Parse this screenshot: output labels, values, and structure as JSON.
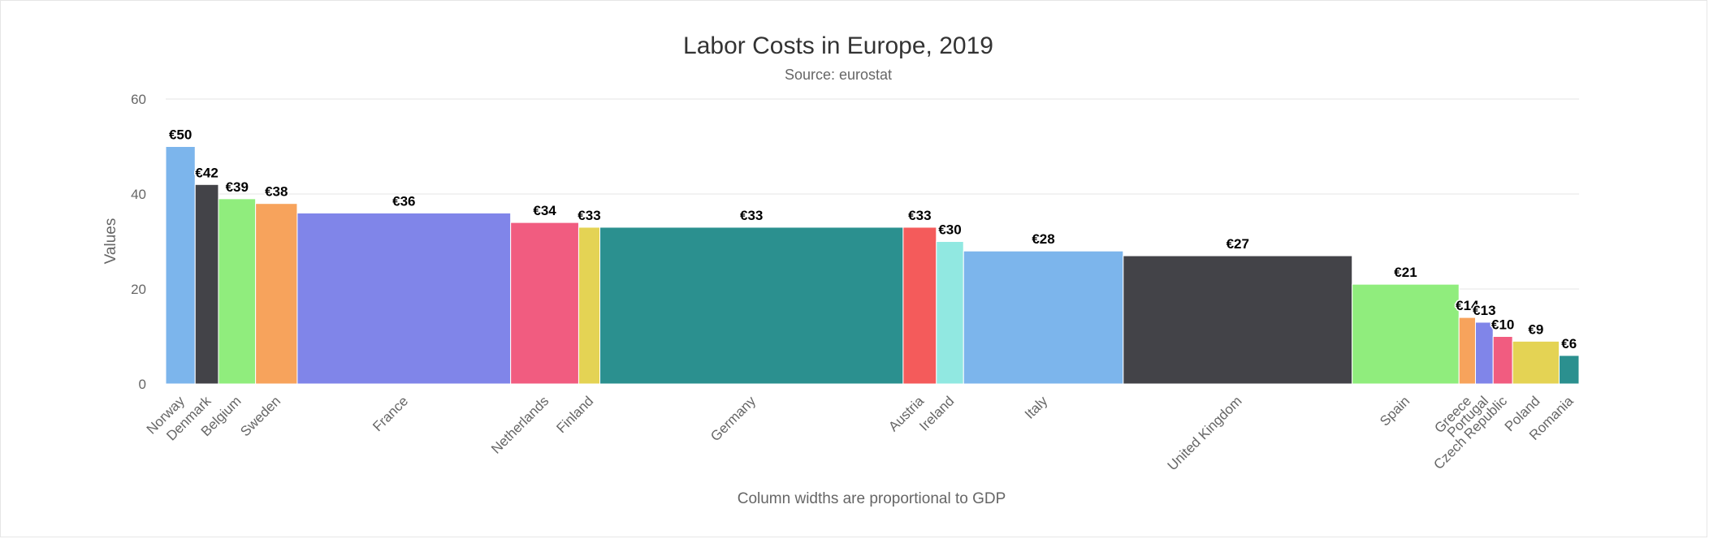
{
  "chart_data": {
    "type": "bar",
    "title": "Labor Costs in Europe, 2019",
    "subtitle": "Source: eurostat",
    "xlabel": "Column widths are proportional to GDP",
    "ylabel": "Values",
    "ylim": [
      0,
      60
    ],
    "yticks": [
      0,
      20,
      40,
      60
    ],
    "grid": true,
    "label_prefix": "€",
    "categories": [
      "Norway",
      "Denmark",
      "Belgium",
      "Sweden",
      "France",
      "Netherlands",
      "Finland",
      "Germany",
      "Austria",
      "Ireland",
      "Italy",
      "United Kingdom",
      "Spain",
      "Greece",
      "Portugal",
      "Czech Republic",
      "Poland",
      "Romania"
    ],
    "values": [
      50,
      42,
      39,
      38,
      36,
      34,
      33,
      33,
      33,
      30,
      28,
      27,
      21,
      14,
      13,
      10,
      9,
      6
    ],
    "data_labels": [
      "€50",
      "€42",
      "€39",
      "€38",
      "€36",
      "€34",
      "€33",
      "€33",
      "€33",
      "€30",
      "€28",
      "€27",
      "€21",
      "€14",
      "€13",
      "€10",
      "€9",
      "€6"
    ],
    "gdp_weights": [
      335,
      265,
      422,
      474,
      2427,
      774,
      241,
      3449,
      378,
      309,
      1816,
      2604,
      1215,
      187,
      201,
      221,
      530,
      226
    ],
    "colors": [
      "#7cb5ec",
      "#434348",
      "#90ed7d",
      "#f7a35c",
      "#8085e9",
      "#f15c80",
      "#e4d354",
      "#2b908f",
      "#f45b5b",
      "#91e8e1",
      "#7cb5ec",
      "#434348",
      "#90ed7d",
      "#f7a35c",
      "#8085e9",
      "#f15c80",
      "#e4d354",
      "#2b908f"
    ]
  }
}
